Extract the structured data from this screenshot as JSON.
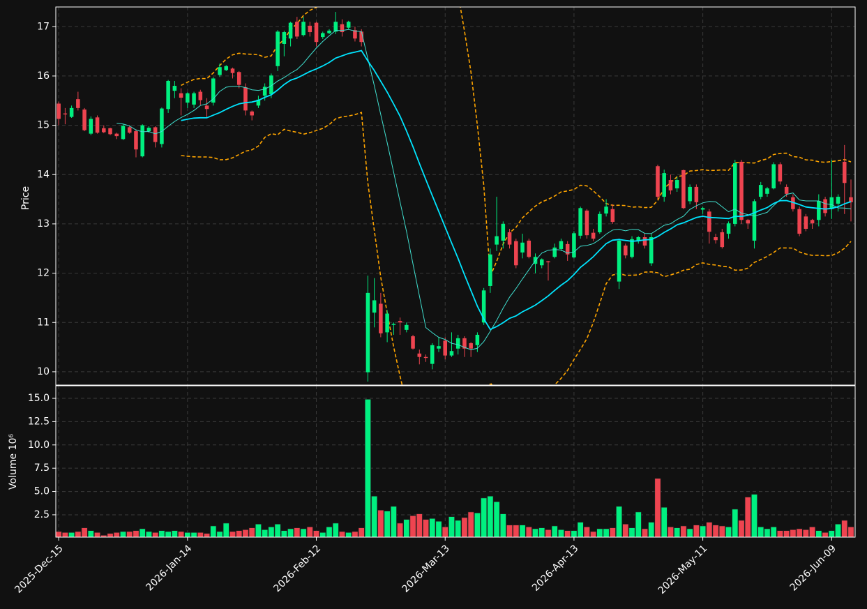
{
  "chart_data": {
    "type": "candlestick",
    "categories": [
      "2025-Dec-15",
      null,
      null,
      null,
      null,
      null,
      null,
      null,
      null,
      null,
      null,
      null,
      null,
      null,
      null,
      null,
      null,
      null,
      null,
      null,
      "2026-Jan-14",
      null,
      null,
      null,
      null,
      null,
      null,
      null,
      null,
      null,
      null,
      null,
      null,
      null,
      null,
      null,
      null,
      null,
      null,
      null,
      "2026-Feb-12",
      null,
      null,
      null,
      null,
      null,
      null,
      null,
      null,
      null,
      null,
      null,
      null,
      null,
      null,
      null,
      null,
      null,
      null,
      null,
      "2026-Mar-13",
      null,
      null,
      null,
      null,
      null,
      null,
      null,
      null,
      null,
      null,
      null,
      null,
      null,
      null,
      null,
      null,
      null,
      null,
      null,
      "2026-Apr-13",
      null,
      null,
      null,
      null,
      null,
      null,
      null,
      null,
      null,
      null,
      null,
      null,
      null,
      null,
      null,
      null,
      null,
      null,
      null,
      "2026-May-11",
      null,
      null,
      null,
      null,
      null,
      null,
      null,
      null,
      null,
      null,
      null,
      null,
      null,
      null,
      null,
      null,
      null,
      null,
      null,
      "2026-Jun-09",
      null,
      null,
      null
    ],
    "open": [
      15.44,
      15.24,
      15.17,
      15.53,
      15.32,
      14.83,
      15.16,
      14.94,
      14.94,
      14.83,
      14.72,
      14.96,
      14.88,
      14.37,
      14.88,
      14.96,
      14.62,
      15.33,
      15.7,
      15.65,
      15.46,
      15.42,
      15.68,
      15.4,
      15.46,
      16.02,
      16.12,
      16.15,
      16.08,
      15.77,
      15.28,
      15.4,
      15.6,
      15.63,
      16.2,
      16.65,
      16.76,
      17.1,
      16.83,
      17.02,
      17.08,
      16.79,
      16.87,
      16.9,
      17.05,
      16.98,
      16.93,
      16.9,
      9.99,
      11.2,
      11.38,
      10.8,
      10.95,
      11.03,
      10.85,
      10.72,
      10.37,
      10.3,
      10.16,
      10.47,
      10.63,
      10.33,
      10.47,
      10.68,
      10.58,
      10.54,
      11.0,
      11.74,
      12.58,
      12.66,
      12.83,
      12.65,
      12.42,
      12.66,
      12.19,
      12.16,
      12.24,
      12.33,
      12.49,
      12.59,
      12.32,
      12.76,
      13.27,
      12.82,
      12.83,
      13.21,
      13.3,
      11.83,
      12.56,
      12.33,
      12.66,
      12.73,
      12.2,
      14.17,
      13.55,
      13.89,
      13.72,
      14.09,
      13.46,
      13.75,
      13.29,
      13.25,
      12.73,
      12.83,
      12.8,
      13.0,
      14.26,
      13.08,
      12.66,
      13.55,
      13.61,
      13.72,
      14.21,
      13.75,
      13.54,
      13.3,
      13.15,
      13.08,
      13.08,
      13.5,
      13.3,
      13.41,
      14.26,
      13.54
    ],
    "high": [
      15.48,
      15.35,
      15.4,
      15.68,
      15.35,
      15.18,
      15.2,
      15.0,
      14.95,
      14.85,
      15.02,
      15.0,
      14.92,
      15.02,
      14.98,
      14.98,
      15.36,
      15.92,
      15.9,
      15.75,
      15.67,
      15.68,
      15.72,
      15.55,
      15.98,
      16.25,
      16.22,
      16.17,
      16.1,
      15.85,
      15.3,
      15.6,
      15.85,
      16.05,
      16.93,
      16.92,
      17.1,
      17.2,
      17.2,
      17.1,
      17.1,
      16.9,
      16.95,
      17.3,
      17.15,
      17.12,
      17.0,
      16.95,
      11.95,
      11.9,
      11.6,
      11.25,
      11.0,
      11.1,
      11.0,
      10.75,
      10.45,
      10.35,
      10.58,
      10.7,
      10.7,
      10.8,
      10.75,
      10.72,
      10.6,
      10.8,
      11.7,
      12.5,
      13.55,
      13.05,
      12.9,
      12.7,
      12.8,
      12.7,
      12.4,
      12.3,
      12.25,
      12.6,
      12.7,
      12.65,
      12.85,
      13.35,
      13.3,
      12.9,
      13.25,
      13.5,
      13.4,
      12.7,
      12.6,
      12.75,
      12.75,
      12.8,
      12.8,
      14.2,
      14.1,
      14.0,
      13.95,
      14.1,
      13.8,
      13.8,
      13.35,
      13.3,
      12.8,
      12.9,
      13.05,
      14.3,
      14.3,
      13.1,
      13.5,
      13.85,
      13.75,
      14.25,
      14.25,
      13.8,
      13.6,
      13.35,
      13.2,
      13.1,
      13.6,
      13.55,
      14.3,
      13.6,
      14.6,
      13.9
    ],
    "low": [
      15.0,
      15.02,
      15.15,
      15.3,
      14.88,
      14.8,
      14.83,
      14.84,
      14.8,
      14.72,
      14.7,
      14.83,
      14.35,
      14.35,
      14.85,
      14.55,
      14.55,
      15.25,
      15.55,
      15.2,
      15.35,
      15.35,
      15.4,
      15.15,
      15.4,
      15.98,
      16.1,
      15.95,
      15.75,
      15.2,
      15.1,
      15.35,
      15.5,
      15.55,
      16.1,
      16.4,
      16.6,
      16.75,
      16.8,
      16.8,
      16.6,
      16.75,
      16.85,
      16.85,
      16.8,
      16.95,
      16.7,
      16.6,
      9.8,
      10.9,
      10.7,
      10.6,
      10.75,
      10.75,
      10.8,
      10.45,
      10.15,
      10.2,
      10.05,
      10.4,
      10.25,
      10.3,
      10.35,
      10.3,
      10.3,
      10.4,
      10.95,
      11.6,
      12.45,
      12.5,
      12.5,
      12.1,
      12.3,
      12.3,
      12.0,
      12.1,
      11.85,
      12.3,
      12.45,
      12.25,
      12.3,
      12.7,
      12.7,
      12.65,
      12.8,
      13.15,
      13.0,
      11.68,
      12.3,
      12.3,
      12.6,
      12.5,
      12.15,
      13.5,
      13.45,
      13.6,
      13.65,
      13.3,
      13.4,
      13.3,
      13.2,
      12.6,
      12.6,
      12.5,
      12.7,
      12.95,
      13.0,
      12.9,
      12.5,
      13.5,
      13.55,
      13.7,
      13.8,
      13.55,
      13.25,
      12.75,
      12.85,
      12.9,
      12.95,
      13.15,
      13.1,
      13.25,
      13.2,
      13.05
    ],
    "close": [
      15.13,
      15.22,
      15.35,
      15.35,
      14.9,
      15.13,
      14.85,
      14.86,
      14.82,
      14.78,
      14.99,
      14.85,
      14.51,
      15.0,
      14.95,
      14.66,
      15.34,
      15.9,
      15.8,
      15.56,
      15.65,
      15.65,
      15.51,
      15.33,
      15.95,
      16.18,
      16.2,
      16.06,
      15.82,
      15.3,
      15.2,
      15.52,
      15.78,
      16.01,
      16.9,
      16.89,
      17.08,
      16.8,
      17.1,
      16.89,
      16.69,
      16.87,
      16.92,
      17.1,
      16.89,
      17.1,
      16.76,
      16.69,
      11.6,
      11.45,
      10.78,
      11.18,
      10.97,
      11.0,
      10.95,
      10.47,
      10.3,
      10.28,
      10.54,
      10.52,
      10.33,
      10.42,
      10.68,
      10.47,
      10.47,
      10.75,
      11.65,
      12.38,
      12.75,
      13.0,
      12.58,
      12.16,
      12.62,
      12.33,
      12.33,
      12.28,
      12.22,
      12.52,
      12.65,
      12.38,
      12.81,
      13.32,
      12.77,
      12.7,
      13.2,
      13.35,
      13.04,
      12.66,
      12.36,
      12.69,
      12.73,
      12.56,
      12.73,
      13.55,
      14.03,
      13.68,
      13.89,
      13.32,
      13.75,
      13.44,
      13.32,
      12.84,
      12.67,
      12.53,
      13.01,
      14.23,
      13.08,
      13.01,
      13.46,
      13.79,
      13.72,
      14.21,
      13.86,
      13.61,
      13.3,
      12.8,
      12.9,
      13.01,
      13.46,
      13.22,
      13.54,
      13.55,
      13.83,
      13.44
    ],
    "volume": [
      0.7,
      0.6,
      0.6,
      0.7,
      1.1,
      0.8,
      0.6,
      0.3,
      0.5,
      0.6,
      0.7,
      0.7,
      0.8,
      1.0,
      0.7,
      0.6,
      0.8,
      0.7,
      0.8,
      0.7,
      0.6,
      0.6,
      0.6,
      0.5,
      1.3,
      0.7,
      1.6,
      0.7,
      0.8,
      0.9,
      1.1,
      1.5,
      0.9,
      1.2,
      1.5,
      0.8,
      1.0,
      1.1,
      1.0,
      1.2,
      0.8,
      0.6,
      1.2,
      1.6,
      0.7,
      0.6,
      0.7,
      1.1,
      14.9,
      4.5,
      3.0,
      2.9,
      3.4,
      1.6,
      2.0,
      2.4,
      2.6,
      2.0,
      2.1,
      1.8,
      1.2,
      2.3,
      1.9,
      2.2,
      2.8,
      2.7,
      4.3,
      4.5,
      3.9,
      2.6,
      1.4,
      1.4,
      1.4,
      1.2,
      1.0,
      1.1,
      0.9,
      1.3,
      0.9,
      0.8,
      0.8,
      1.7,
      1.2,
      0.7,
      1.0,
      1.0,
      1.1,
      3.4,
      1.5,
      1.1,
      2.8,
      1.0,
      1.7,
      6.4,
      3.3,
      1.2,
      1.1,
      1.3,
      1.0,
      1.4,
      1.3,
      1.7,
      1.4,
      1.3,
      1.2,
      3.1,
      1.9,
      4.4,
      4.7,
      1.2,
      1.0,
      1.2,
      0.8,
      0.8,
      0.9,
      1.0,
      0.9,
      1.2,
      0.8,
      0.6,
      0.8,
      1.5,
      1.9,
      1.2
    ],
    "ylabel": "Price",
    "volume_ylabel": "Volume  10⁶",
    "ylim": [
      9.73,
      17.4
    ],
    "yticks": [
      10,
      11,
      12,
      13,
      14,
      15,
      16,
      17
    ],
    "volume_ylim": [
      0.1,
      16.35
    ],
    "volume_yticks": [
      2.5,
      {
        "value": 5,
        "label": "5.0"
      },
      7.5,
      {
        "value": 10,
        "label": "10.0"
      },
      12.5,
      {
        "value": 15,
        "label": "15.0"
      }
    ],
    "up_color": "#00f080",
    "down_color": "#ee4450",
    "mav": [
      10,
      20
    ],
    "mav_colors": [
      "#40e0d0",
      "#00e5ff"
    ],
    "bollinger": {
      "period": 20,
      "std": 2,
      "color": "#ffa500"
    },
    "grid": true
  }
}
